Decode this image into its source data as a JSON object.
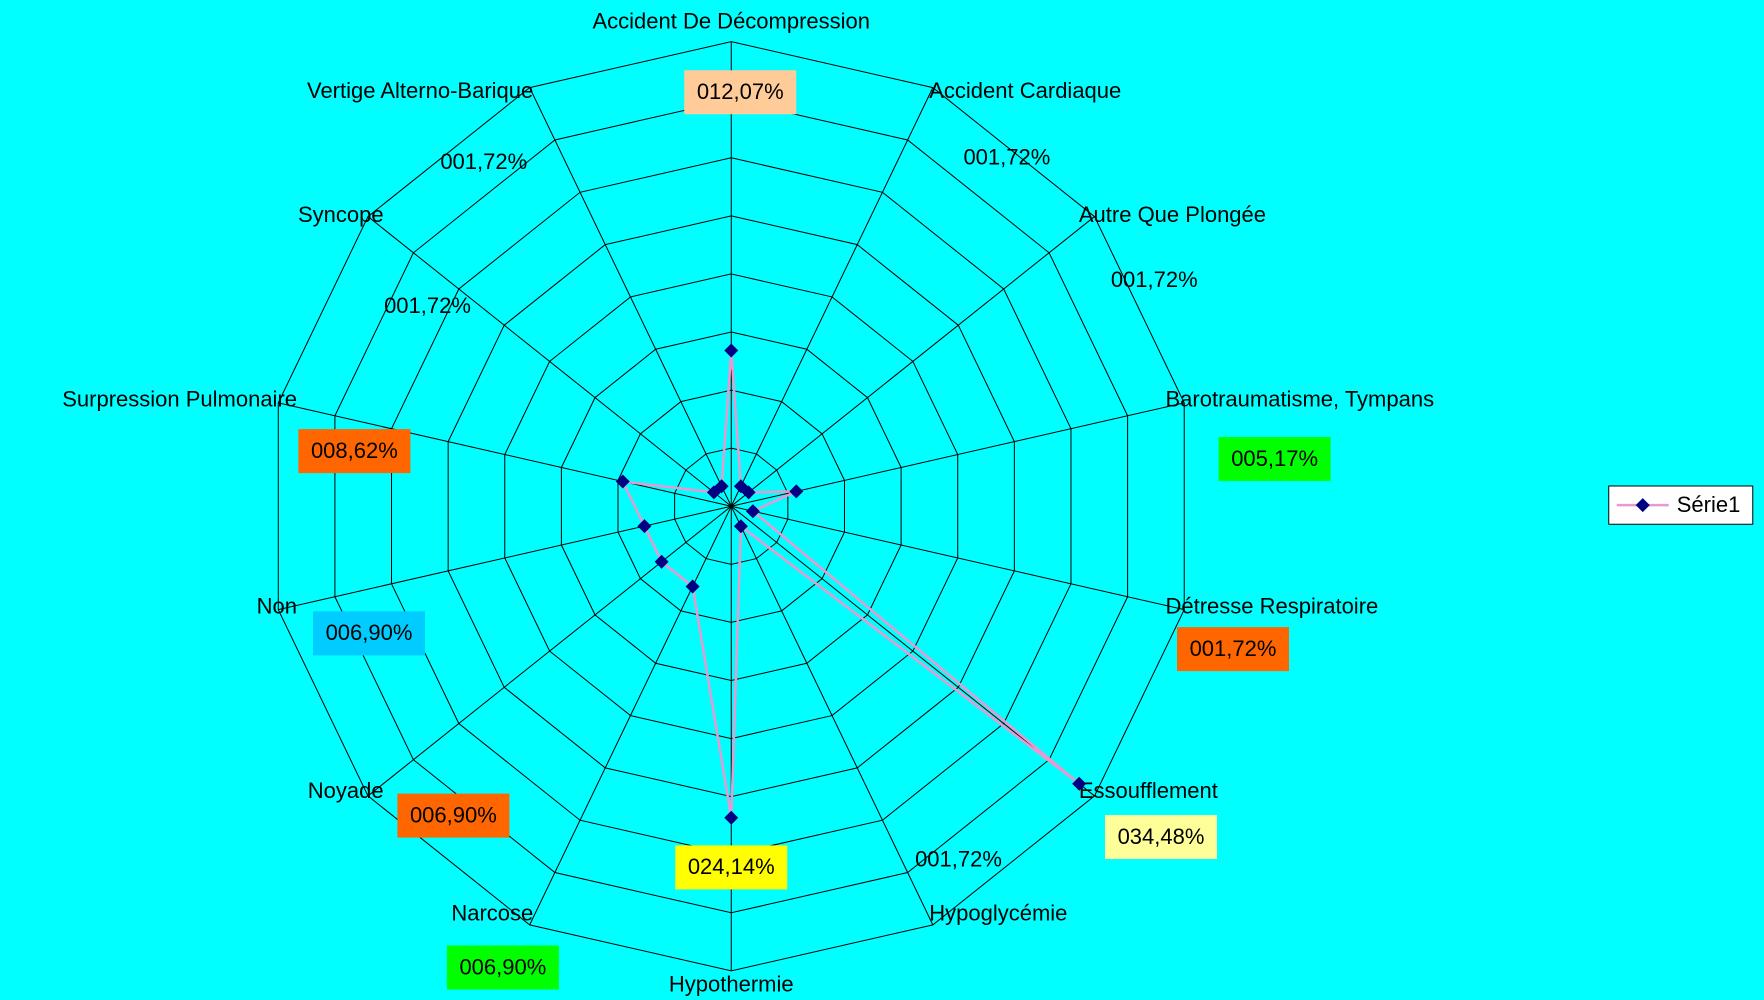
{
  "chart_data": {
    "type": "radar",
    "categories": [
      "Accident De Décompression",
      "Accident Cardiaque",
      "Autre Que Plongée",
      "Barotraumatisme, Tympans",
      "Détresse Respiratoire",
      "Essoufflement",
      "Hypoglycémie",
      "Hypothermie",
      "Narcose",
      "Noyade",
      "Non",
      "Surpression Pulmonaire",
      "Syncope",
      "Vertige Alterno-Barique"
    ],
    "series": [
      {
        "name": "Série1",
        "color": "#e89ad0",
        "marker_color": "#000080",
        "values": [
          12.07,
          1.72,
          1.72,
          5.17,
          1.72,
          34.48,
          1.72,
          24.14,
          6.9,
          6.9,
          6.9,
          8.62,
          1.72,
          1.72
        ],
        "value_labels": [
          "012,07%",
          "001,72%",
          "001,72%",
          "005,17%",
          "001,72%",
          "034,48%",
          "001,72%",
          "024,14%",
          "006,90%",
          "006,90%",
          "006,90%",
          "008,62%",
          "001,72%",
          "001,72%"
        ],
        "label_colors": [
          "#ffcc99",
          null,
          null,
          "#00ff00",
          "#ff6600",
          "#ffff99",
          null,
          "#ffff00",
          "#00ff00",
          "#ff6600",
          "#00ccff",
          "#ff6600",
          null,
          null
        ]
      }
    ],
    "ylim": [
      0,
      36
    ],
    "yticks": [
      0,
      4.5,
      9,
      13.5,
      18,
      22.5,
      27,
      31.5,
      36
    ],
    "grid": true,
    "legend": "right",
    "background": "#00ffff"
  }
}
